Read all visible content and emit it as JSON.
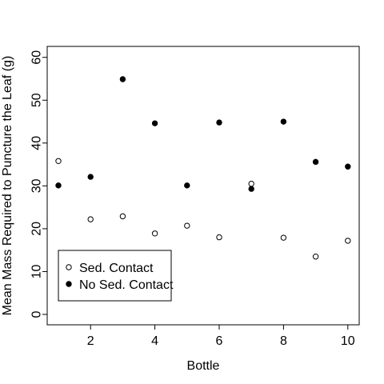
{
  "chart_data": {
    "type": "scatter",
    "xlabel": "Bottle",
    "ylabel": "Mean Mass Required to Puncture the Leaf (g)",
    "xlim": [
      1,
      10
    ],
    "ylim": [
      0,
      60
    ],
    "x_ticks": [
      2,
      4,
      6,
      8,
      10
    ],
    "y_ticks": [
      0,
      10,
      20,
      30,
      40,
      50,
      60
    ],
    "grid": false,
    "legend_position": "bottom-left",
    "series": [
      {
        "name": "Sed. Contact",
        "marker": "open-circle",
        "color": "#000000",
        "x": [
          1,
          2,
          3,
          4,
          5,
          6,
          7,
          8,
          9,
          10
        ],
        "y": [
          35.8,
          22.2,
          22.9,
          18.9,
          20.7,
          18.0,
          30.5,
          17.9,
          13.5,
          17.2
        ]
      },
      {
        "name": "No Sed. Contact",
        "marker": "filled-circle",
        "color": "#000000",
        "x": [
          1,
          2,
          3,
          4,
          5,
          6,
          7,
          8,
          9,
          10
        ],
        "y": [
          30.1,
          32.1,
          54.9,
          44.6,
          30.1,
          44.8,
          29.3,
          45.0,
          35.6,
          34.5
        ]
      }
    ]
  }
}
